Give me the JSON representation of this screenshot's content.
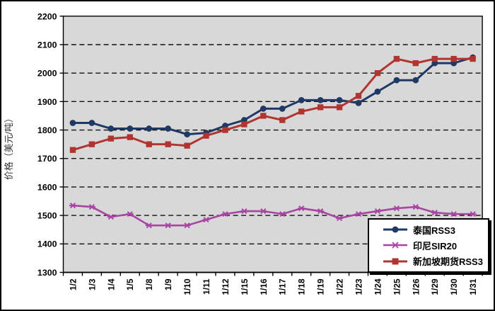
{
  "chart_data": {
    "type": "line",
    "title": "",
    "ylabel": "价格（美元/吨）",
    "xlabel": "",
    "ylim": [
      1300,
      2200
    ],
    "ytick_step": 100,
    "grid": "horizontal dashed black lines",
    "plot_background": "#D8D8D8",
    "legend_position": "inside bottom-right, white box with black border and shadow",
    "categories": [
      "1/2",
      "1/3",
      "1/4",
      "1/5",
      "1/8",
      "1/9",
      "1/10",
      "1/11",
      "1/12",
      "1/15",
      "1/16",
      "1/17",
      "1/18",
      "1/19",
      "1/22",
      "1/23",
      "1/24",
      "1/25",
      "1/26",
      "1/29",
      "1/30",
      "1/31"
    ],
    "series": [
      {
        "name": "泰国RSS3",
        "color": "#1F3864",
        "marker": "circle",
        "values": [
          1825,
          1825,
          1805,
          1805,
          1805,
          1805,
          1785,
          1790,
          1815,
          1835,
          1875,
          1875,
          1905,
          1905,
          1905,
          1895,
          1935,
          1975,
          1975,
          2035,
          2035,
          2055
        ]
      },
      {
        "name": "印尼SIR20",
        "color": "#A845A3",
        "marker": "asterisk",
        "values": [
          1535,
          1530,
          1495,
          1505,
          1465,
          1465,
          1465,
          1485,
          1505,
          1515,
          1515,
          1505,
          1525,
          1515,
          1490,
          1505,
          1515,
          1525,
          1530,
          1510,
          1505,
          1505
        ]
      },
      {
        "name": "新加坡期货RSS3",
        "color": "#B0342F",
        "marker": "square",
        "values": [
          1730,
          1750,
          1770,
          1775,
          1750,
          1750,
          1745,
          1780,
          1800,
          1820,
          1850,
          1835,
          1865,
          1880,
          1880,
          1920,
          2000,
          2050,
          2035,
          2050,
          2050,
          2050
        ]
      }
    ]
  }
}
